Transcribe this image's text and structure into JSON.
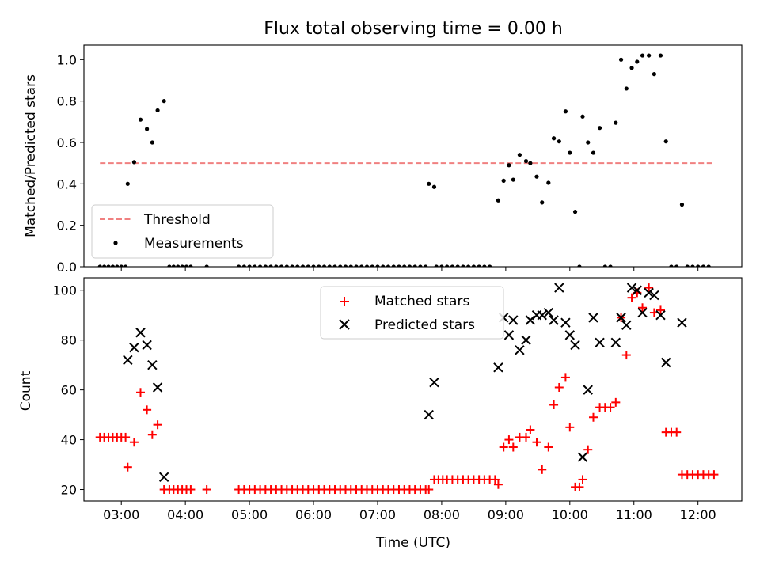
{
  "chart_data": [
    {
      "type": "line+scatter",
      "title": "Flux total observing time = 0.00 h",
      "xlabel": "",
      "ylabel": "Matched/Predicted stars",
      "ylim": [
        0,
        1.07
      ],
      "yticks": [
        "0.0",
        "0.2",
        "0.4",
        "0.6",
        "0.8",
        "1.0"
      ],
      "ytick_values": [
        0,
        0.2,
        0.4,
        0.6,
        0.8,
        1.0
      ],
      "xlim": [
        "02:25",
        "12:41"
      ],
      "legend": {
        "position": "lower-left",
        "entries": [
          "Threshold",
          "Measurements"
        ]
      },
      "colors": {
        "threshold": "#f08080",
        "measurements": "#000000"
      },
      "threshold": {
        "name": "Threshold",
        "x": [
          "02:40",
          "12:13"
        ],
        "y": 0.5
      },
      "measurements": {
        "name": "Measurements",
        "points": [
          [
            "02:40",
            0
          ],
          [
            "02:44",
            0
          ],
          [
            "02:48",
            0
          ],
          [
            "02:52",
            0
          ],
          [
            "02:56",
            0
          ],
          [
            "03:00",
            0
          ],
          [
            "03:04",
            0
          ],
          [
            "03:06",
            0.4
          ],
          [
            "03:12",
            0.505
          ],
          [
            "03:18",
            0.71
          ],
          [
            "03:24",
            0.665
          ],
          [
            "03:29",
            0.6
          ],
          [
            "03:34",
            0.755
          ],
          [
            "03:40",
            0.8
          ],
          [
            "03:45",
            0
          ],
          [
            "03:49",
            0
          ],
          [
            "03:53",
            0
          ],
          [
            "03:57",
            0
          ],
          [
            "04:01",
            0
          ],
          [
            "04:05",
            0
          ],
          [
            "04:20",
            0
          ],
          [
            "04:50",
            0
          ],
          [
            "04:55",
            0
          ],
          [
            "05:00",
            0
          ],
          [
            "05:05",
            0
          ],
          [
            "05:10",
            0
          ],
          [
            "05:15",
            0
          ],
          [
            "05:20",
            0
          ],
          [
            "05:25",
            0
          ],
          [
            "05:30",
            0
          ],
          [
            "05:35",
            0
          ],
          [
            "05:40",
            0
          ],
          [
            "05:45",
            0
          ],
          [
            "05:50",
            0
          ],
          [
            "05:55",
            0
          ],
          [
            "06:00",
            0
          ],
          [
            "06:05",
            0
          ],
          [
            "06:10",
            0
          ],
          [
            "06:15",
            0
          ],
          [
            "06:20",
            0
          ],
          [
            "06:25",
            0
          ],
          [
            "06:30",
            0
          ],
          [
            "06:35",
            0
          ],
          [
            "06:40",
            0
          ],
          [
            "06:45",
            0
          ],
          [
            "06:50",
            0
          ],
          [
            "06:55",
            0
          ],
          [
            "07:00",
            0
          ],
          [
            "07:05",
            0
          ],
          [
            "07:10",
            0
          ],
          [
            "07:15",
            0
          ],
          [
            "07:20",
            0
          ],
          [
            "07:25",
            0
          ],
          [
            "07:30",
            0
          ],
          [
            "07:35",
            0
          ],
          [
            "07:40",
            0
          ],
          [
            "07:45",
            0
          ],
          [
            "07:48",
            0.4
          ],
          [
            "07:53",
            0.385
          ],
          [
            "07:55",
            0
          ],
          [
            "08:00",
            0
          ],
          [
            "08:05",
            0
          ],
          [
            "08:10",
            0
          ],
          [
            "08:15",
            0
          ],
          [
            "08:20",
            0
          ],
          [
            "08:25",
            0
          ],
          [
            "08:30",
            0
          ],
          [
            "08:35",
            0
          ],
          [
            "08:40",
            0
          ],
          [
            "08:45",
            0
          ],
          [
            "08:53",
            0.32
          ],
          [
            "08:58",
            0.415
          ],
          [
            "09:03",
            0.49
          ],
          [
            "09:07",
            0.42
          ],
          [
            "09:13",
            0.54
          ],
          [
            "09:19",
            0.51
          ],
          [
            "09:23",
            0.5
          ],
          [
            "09:29",
            0.435
          ],
          [
            "09:34",
            0.31
          ],
          [
            "09:40",
            0.405
          ],
          [
            "09:45",
            0.62
          ],
          [
            "09:50",
            0.605
          ],
          [
            "09:56",
            0.75
          ],
          [
            "10:00",
            0.55
          ],
          [
            "10:05",
            0.265
          ],
          [
            "10:09",
            0
          ],
          [
            "10:12",
            0.725
          ],
          [
            "10:17",
            0.6
          ],
          [
            "10:22",
            0.55
          ],
          [
            "10:28",
            0.67
          ],
          [
            "10:33",
            0
          ],
          [
            "10:38",
            0
          ],
          [
            "10:43",
            0.695
          ],
          [
            "10:48",
            1.0
          ],
          [
            "10:53",
            0.86
          ],
          [
            "10:58",
            0.96
          ],
          [
            "11:03",
            0.99
          ],
          [
            "11:08",
            1.02
          ],
          [
            "11:14",
            1.02
          ],
          [
            "11:19",
            0.93
          ],
          [
            "11:25",
            1.02
          ],
          [
            "11:30",
            0.605
          ],
          [
            "11:35",
            0
          ],
          [
            "11:40",
            0
          ],
          [
            "11:45",
            0.3
          ],
          [
            "11:50",
            0
          ],
          [
            "11:55",
            0
          ],
          [
            "12:00",
            0
          ],
          [
            "12:05",
            0
          ],
          [
            "12:10",
            0
          ]
        ]
      }
    },
    {
      "type": "scatter",
      "title": "",
      "xlabel": "Time (UTC)",
      "ylabel": "Count",
      "ylim": [
        15.4,
        105
      ],
      "yticks": [
        "20",
        "40",
        "60",
        "80",
        "100"
      ],
      "ytick_values": [
        20,
        40,
        60,
        80,
        100
      ],
      "xlim": [
        "02:25",
        "12:41"
      ],
      "xticks": [
        "03:00",
        "04:00",
        "05:00",
        "06:00",
        "07:00",
        "08:00",
        "09:00",
        "10:00",
        "11:00",
        "12:00"
      ],
      "legend": {
        "position": "upper-center",
        "entries": [
          "Matched stars",
          "Predicted stars"
        ]
      },
      "colors": {
        "matched": "#ff0000",
        "predicted": "#000000"
      },
      "series": [
        {
          "name": "Matched stars",
          "marker": "plus",
          "points": [
            [
              "02:40",
              41
            ],
            [
              "02:44",
              41
            ],
            [
              "02:48",
              41
            ],
            [
              "02:52",
              41
            ],
            [
              "02:56",
              41
            ],
            [
              "03:00",
              41
            ],
            [
              "03:04",
              41
            ],
            [
              "03:06",
              29
            ],
            [
              "03:12",
              39
            ],
            [
              "03:18",
              59
            ],
            [
              "03:24",
              52
            ],
            [
              "03:29",
              42
            ],
            [
              "03:34",
              46
            ],
            [
              "03:40",
              20
            ],
            [
              "03:45",
              20
            ],
            [
              "03:49",
              20
            ],
            [
              "03:53",
              20
            ],
            [
              "03:57",
              20
            ],
            [
              "04:01",
              20
            ],
            [
              "04:05",
              20
            ],
            [
              "04:20",
              20
            ],
            [
              "04:50",
              20
            ],
            [
              "04:55",
              20
            ],
            [
              "05:00",
              20
            ],
            [
              "05:05",
              20
            ],
            [
              "05:10",
              20
            ],
            [
              "05:15",
              20
            ],
            [
              "05:20",
              20
            ],
            [
              "05:25",
              20
            ],
            [
              "05:30",
              20
            ],
            [
              "05:35",
              20
            ],
            [
              "05:40",
              20
            ],
            [
              "05:45",
              20
            ],
            [
              "05:50",
              20
            ],
            [
              "05:55",
              20
            ],
            [
              "06:00",
              20
            ],
            [
              "06:05",
              20
            ],
            [
              "06:10",
              20
            ],
            [
              "06:15",
              20
            ],
            [
              "06:20",
              20
            ],
            [
              "06:25",
              20
            ],
            [
              "06:30",
              20
            ],
            [
              "06:35",
              20
            ],
            [
              "06:40",
              20
            ],
            [
              "06:45",
              20
            ],
            [
              "06:50",
              20
            ],
            [
              "06:55",
              20
            ],
            [
              "07:00",
              20
            ],
            [
              "07:05",
              20
            ],
            [
              "07:10",
              20
            ],
            [
              "07:15",
              20
            ],
            [
              "07:20",
              20
            ],
            [
              "07:25",
              20
            ],
            [
              "07:30",
              20
            ],
            [
              "07:35",
              20
            ],
            [
              "07:40",
              20
            ],
            [
              "07:45",
              20
            ],
            [
              "07:48",
              20
            ],
            [
              "07:53",
              24
            ],
            [
              "07:57",
              24
            ],
            [
              "08:01",
              24
            ],
            [
              "08:05",
              24
            ],
            [
              "08:10",
              24
            ],
            [
              "08:15",
              24
            ],
            [
              "08:20",
              24
            ],
            [
              "08:25",
              24
            ],
            [
              "08:30",
              24
            ],
            [
              "08:35",
              24
            ],
            [
              "08:40",
              24
            ],
            [
              "08:45",
              24
            ],
            [
              "08:50",
              24
            ],
            [
              "08:53",
              22
            ],
            [
              "08:58",
              37
            ],
            [
              "09:03",
              40
            ],
            [
              "09:07",
              37
            ],
            [
              "09:13",
              41
            ],
            [
              "09:19",
              41
            ],
            [
              "09:23",
              44
            ],
            [
              "09:29",
              39
            ],
            [
              "09:34",
              28
            ],
            [
              "09:40",
              37
            ],
            [
              "09:45",
              54
            ],
            [
              "09:50",
              61
            ],
            [
              "09:56",
              65
            ],
            [
              "10:00",
              45
            ],
            [
              "10:05",
              21
            ],
            [
              "10:09",
              21
            ],
            [
              "10:12",
              24
            ],
            [
              "10:17",
              36
            ],
            [
              "10:22",
              49
            ],
            [
              "10:28",
              53
            ],
            [
              "10:33",
              53
            ],
            [
              "10:38",
              53
            ],
            [
              "10:43",
              55
            ],
            [
              "10:48",
              89
            ],
            [
              "10:53",
              74
            ],
            [
              "10:58",
              97
            ],
            [
              "11:03",
              99
            ],
            [
              "11:08",
              93
            ],
            [
              "11:14",
              101
            ],
            [
              "11:19",
              91
            ],
            [
              "11:25",
              92
            ],
            [
              "11:30",
              43
            ],
            [
              "11:35",
              43
            ],
            [
              "11:40",
              43
            ],
            [
              "11:45",
              26
            ],
            [
              "11:50",
              26
            ],
            [
              "11:55",
              26
            ],
            [
              "12:00",
              26
            ],
            [
              "12:05",
              26
            ],
            [
              "12:10",
              26
            ],
            [
              "12:15",
              26
            ]
          ]
        },
        {
          "name": "Predicted stars",
          "marker": "x",
          "points": [
            [
              "03:06",
              72
            ],
            [
              "03:12",
              77
            ],
            [
              "03:18",
              83
            ],
            [
              "03:24",
              78
            ],
            [
              "03:29",
              70
            ],
            [
              "03:34",
              61
            ],
            [
              "03:40",
              25
            ],
            [
              "07:48",
              50
            ],
            [
              "07:53",
              63
            ],
            [
              "08:53",
              69
            ],
            [
              "08:58",
              89
            ],
            [
              "09:03",
              82
            ],
            [
              "09:07",
              88
            ],
            [
              "09:13",
              76
            ],
            [
              "09:19",
              80
            ],
            [
              "09:23",
              88
            ],
            [
              "09:29",
              90
            ],
            [
              "09:34",
              90
            ],
            [
              "09:40",
              91
            ],
            [
              "09:45",
              88
            ],
            [
              "09:50",
              101
            ],
            [
              "09:56",
              87
            ],
            [
              "10:00",
              82
            ],
            [
              "10:05",
              78
            ],
            [
              "10:12",
              33
            ],
            [
              "10:17",
              60
            ],
            [
              "10:22",
              89
            ],
            [
              "10:28",
              79
            ],
            [
              "10:43",
              79
            ],
            [
              "10:48",
              89
            ],
            [
              "10:53",
              86
            ],
            [
              "10:58",
              101
            ],
            [
              "11:03",
              100
            ],
            [
              "11:08",
              91
            ],
            [
              "11:14",
              99
            ],
            [
              "11:19",
              98
            ],
            [
              "11:25",
              90
            ],
            [
              "11:30",
              71
            ],
            [
              "11:45",
              87
            ]
          ]
        }
      ]
    }
  ]
}
